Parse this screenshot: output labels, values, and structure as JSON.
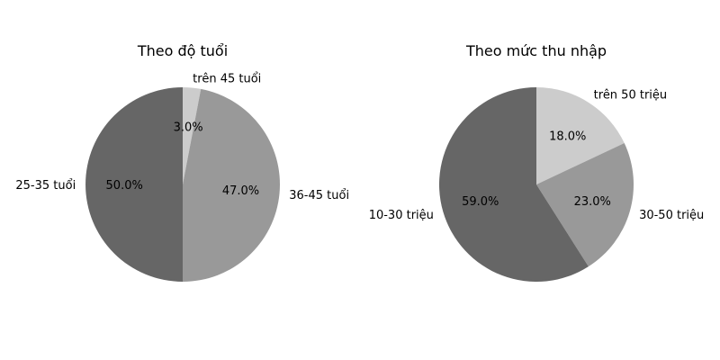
{
  "chart_data": [
    {
      "type": "pie",
      "title": "Theo độ tuổi",
      "categories": [
        "25-35 tuổi",
        "36-45 tuổi",
        "trên 45 tuổi"
      ],
      "values": [
        50.0,
        47.0,
        3.0
      ],
      "value_labels": [
        "50.0%",
        "47.0%",
        "3.0%"
      ],
      "colors": [
        "#666666",
        "#999999",
        "#cccccc"
      ],
      "start_angle_deg": 90,
      "direction": "counterclockwise"
    },
    {
      "type": "pie",
      "title": "Theo mức thu nhập",
      "categories": [
        "10-30 triệu",
        "30-50 triệu",
        "trên 50 triệu"
      ],
      "values": [
        59.0,
        23.0,
        18.0
      ],
      "value_labels": [
        "59.0%",
        "23.0%",
        "18.0%"
      ],
      "colors": [
        "#666666",
        "#999999",
        "#cccccc"
      ],
      "start_angle_deg": 90,
      "direction": "counterclockwise"
    }
  ]
}
